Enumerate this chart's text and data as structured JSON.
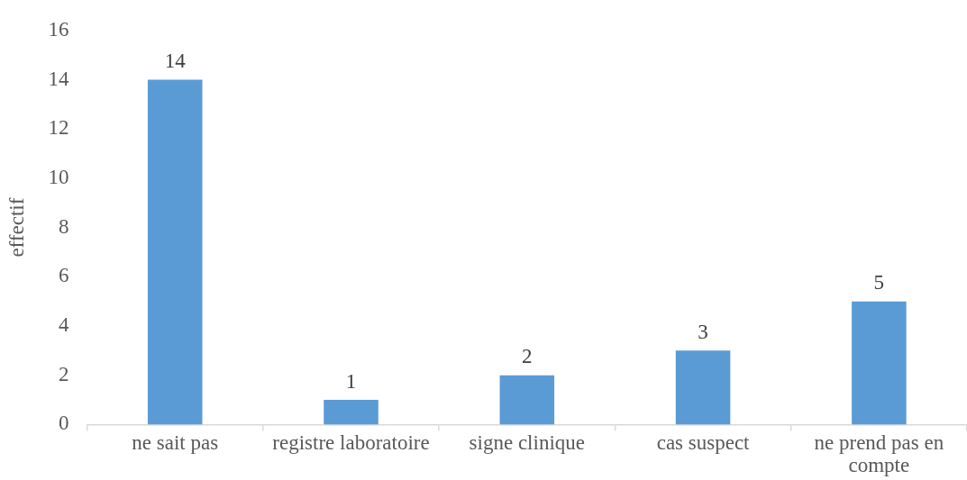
{
  "chart_data": {
    "type": "bar",
    "ylabel": "effectif",
    "categories": [
      "ne sait pas",
      "registre laboratoire",
      "signe clinique",
      "cas suspect",
      "ne prend pas en compte"
    ],
    "values": [
      14,
      1,
      2,
      3,
      5
    ],
    "color": "#5b9bd5",
    "ylim": [
      0,
      16
    ],
    "yticks": [
      0,
      2,
      4,
      6,
      8,
      10,
      12,
      14,
      16
    ],
    "grid": false,
    "data_labels": true
  }
}
